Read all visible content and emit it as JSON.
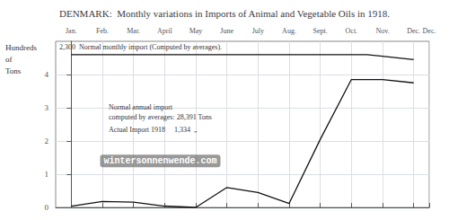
{
  "chart_data": {
    "type": "line",
    "title": "DENMARK:  Monthly variations in Imports of Animal and Vegetable Oils in 1918.",
    "y_label": "Hundreds\nof\nTons",
    "series": [
      {
        "x": [
          0,
          9.5,
          10,
          11
        ],
        "values": [
          4.6,
          4.6,
          4.55,
          4.45
        ],
        "color": "#111111"
      },
      {
        "x": [
          0,
          1,
          2,
          3,
          4,
          5,
          6,
          7,
          8,
          9,
          10,
          11
        ],
        "values": [
          0.04,
          0.18,
          0.16,
          0.04,
          0.0,
          0.6,
          0.45,
          0.12,
          2.05,
          3.85,
          3.85,
          3.75
        ],
        "color": "#111111"
      }
    ],
    "xlim": [
      -0.5,
      11.5
    ],
    "xticks": [
      {
        "value": 0,
        "label": "Jan."
      },
      {
        "value": 1,
        "label": "Feb."
      },
      {
        "value": 2,
        "label": "Mar."
      },
      {
        "value": 3,
        "label": "April"
      },
      {
        "value": 4,
        "label": "May"
      },
      {
        "value": 5,
        "label": "June"
      },
      {
        "value": 6,
        "label": "July"
      },
      {
        "value": 7,
        "label": "Aug."
      },
      {
        "value": 8,
        "label": "Sept."
      },
      {
        "value": 9,
        "label": "Oct."
      },
      {
        "value": 10,
        "label": "Nov."
      },
      {
        "value": 11,
        "label": "Dec."
      },
      {
        "value": 11.5,
        "label": "Dec."
      }
    ],
    "ylim": [
      0,
      5.0
    ],
    "yticks": [
      0,
      1,
      2,
      3,
      4
    ],
    "grid": true,
    "annotations": [
      "2,300  Normal monthly import (Computed by averages).",
      "Normal annual import\ncomputed by averages: 28,391 Tons",
      "Actual Import 1918     1,334  „",
      "wintersonnenwende.com"
    ]
  }
}
